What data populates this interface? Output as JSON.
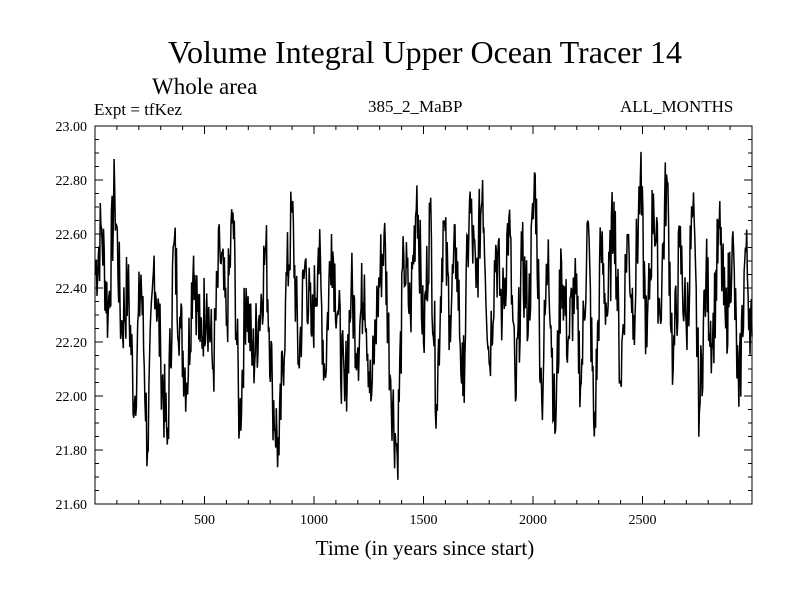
{
  "header": {
    "title": "Volume Integral Upper Ocean Tracer 14",
    "subtitle": "Whole area",
    "expt": "Expt = tfKez",
    "run_id": "385_2_MaBP",
    "months": "ALL_MONTHS"
  },
  "chart_data": {
    "type": "line",
    "title": "Volume Integral Upper Ocean Tracer 14",
    "subtitle": "Whole area",
    "xlabel": "Time (in years since start)",
    "ylabel": "",
    "xlim": [
      0,
      3000
    ],
    "ylim": [
      21.6,
      23.0
    ],
    "x_ticks": [
      500,
      1000,
      1500,
      2000,
      2500
    ],
    "y_ticks": [
      "21.60",
      "21.80",
      "22.00",
      "22.20",
      "22.40",
      "22.60",
      "22.80",
      "23.00"
    ],
    "grid": false,
    "series": [
      {
        "color": "#000000",
        "x": [
          0,
          30,
          60,
          90,
          120,
          150,
          180,
          210,
          240,
          270,
          300,
          330,
          360,
          390,
          420,
          450,
          480,
          510,
          540,
          570,
          600,
          630,
          660,
          690,
          720,
          750,
          780,
          810,
          840,
          870,
          900,
          930,
          960,
          990,
          1020,
          1050,
          1080,
          1110,
          1140,
          1170,
          1200,
          1230,
          1260,
          1290,
          1320,
          1350,
          1380,
          1410,
          1440,
          1470,
          1500,
          1530,
          1560,
          1590,
          1620,
          1650,
          1680,
          1710,
          1740,
          1770,
          1800,
          1830,
          1860,
          1890,
          1920,
          1950,
          1980,
          2010,
          2040,
          2070,
          2100,
          2130,
          2160,
          2190,
          2220,
          2250,
          2280,
          2310,
          2340,
          2370,
          2400,
          2430,
          2460,
          2490,
          2520,
          2550,
          2580,
          2610,
          2640,
          2670,
          2700,
          2730,
          2760,
          2790,
          2820,
          2850,
          2880,
          2910,
          2940,
          2970,
          3000
        ],
        "y": [
          22.45,
          22.62,
          22.3,
          22.77,
          22.25,
          22.4,
          21.97,
          22.45,
          21.8,
          22.52,
          22.15,
          21.82,
          22.56,
          22.25,
          22.05,
          22.52,
          22.2,
          22.38,
          22.1,
          22.55,
          22.26,
          22.68,
          21.88,
          22.4,
          22.12,
          22.3,
          22.55,
          22.02,
          21.78,
          22.35,
          22.68,
          22.12,
          22.5,
          22.22,
          22.55,
          22.08,
          22.6,
          22.3,
          21.98,
          22.4,
          22.18,
          22.45,
          21.98,
          22.35,
          22.6,
          22.06,
          21.78,
          22.52,
          22.3,
          22.78,
          22.2,
          22.68,
          21.97,
          22.65,
          22.3,
          22.55,
          22.0,
          22.72,
          22.4,
          22.8,
          22.12,
          22.56,
          22.3,
          22.66,
          21.98,
          22.5,
          22.3,
          22.82,
          21.98,
          22.58,
          21.86,
          22.5,
          22.2,
          22.4,
          22.05,
          22.65,
          21.85,
          22.55,
          22.3,
          22.72,
          22.05,
          22.6,
          22.3,
          22.8,
          22.18,
          22.75,
          22.3,
          22.82,
          22.1,
          22.55,
          22.25,
          22.68,
          21.94,
          22.45,
          22.2,
          22.62,
          22.25,
          22.58,
          21.96,
          22.55,
          22.22
        ]
      }
    ]
  }
}
